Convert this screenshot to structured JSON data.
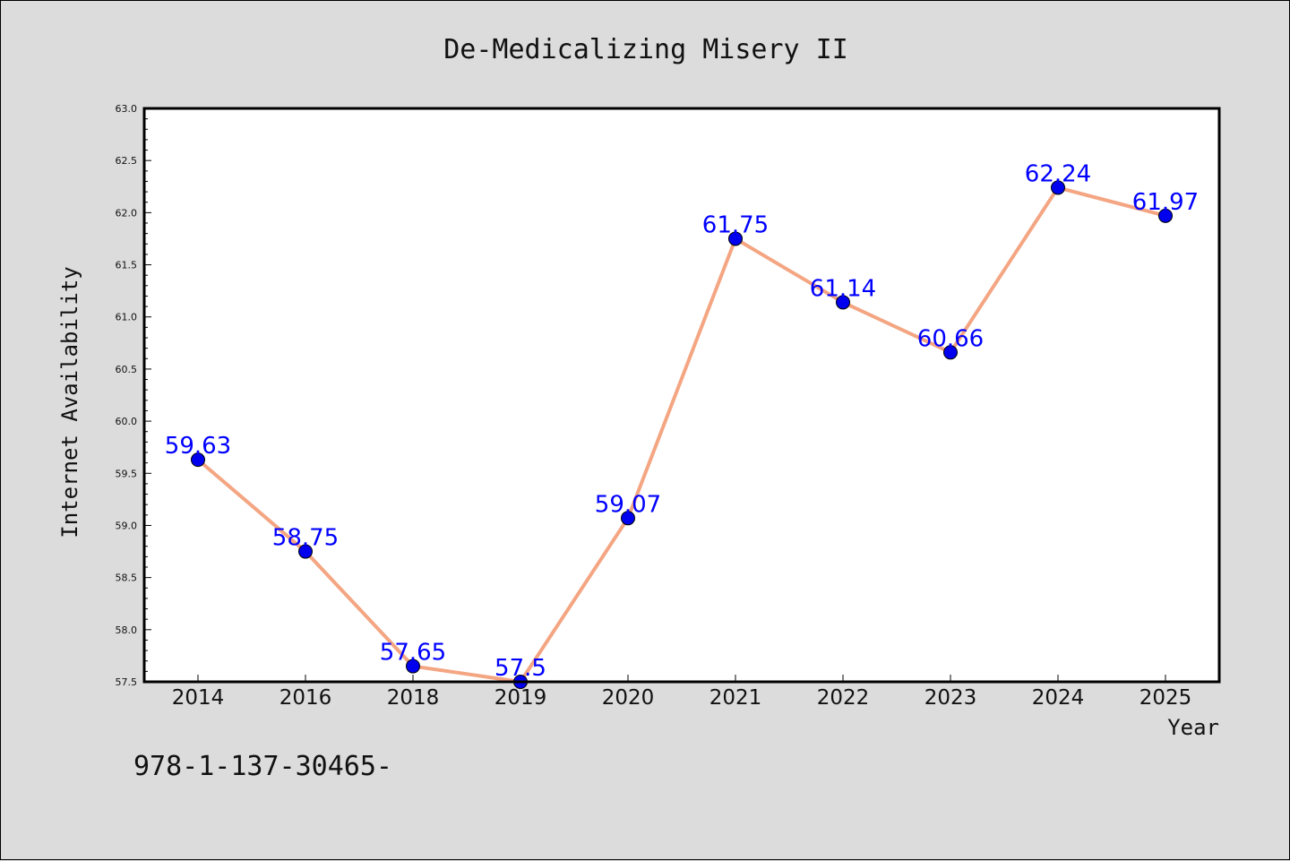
{
  "chart_data": {
    "type": "line",
    "title": "De-Medicalizing Misery II",
    "xlabel": "Year",
    "ylabel": "Internet Availability",
    "categories": [
      "2014",
      "2016",
      "2018",
      "2019",
      "2020",
      "2021",
      "2022",
      "2023",
      "2024",
      "2025"
    ],
    "values": [
      59.63,
      58.75,
      57.65,
      57.5,
      59.07,
      61.75,
      61.14,
      60.66,
      62.24,
      61.97
    ],
    "data_labels": [
      "59.63",
      "58.75",
      "57.65",
      "57.5",
      "59.07",
      "61.75",
      "61.14",
      "60.66",
      "62.24",
      "61.97"
    ],
    "ylim": [
      57.5,
      63.0
    ],
    "yticks": [
      "57.5",
      "58.0",
      "58.5",
      "59.0",
      "59.5",
      "60.0",
      "60.5",
      "61.0",
      "61.5",
      "62.0",
      "62.5",
      "63.0"
    ],
    "grid": false,
    "legend": "none",
    "colors": {
      "line": "#f4a582",
      "marker": "#0000ee",
      "label": "#0000ff",
      "plot_bg": "#ffffff",
      "page_bg": "#dcdcdc"
    }
  },
  "footnote": "978-1-137-30465-"
}
